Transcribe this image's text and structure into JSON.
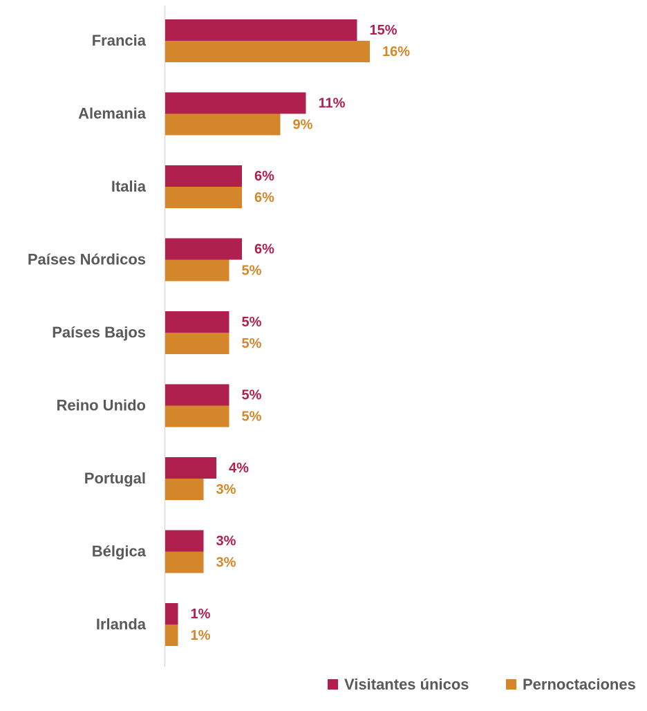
{
  "chart_data": {
    "type": "bar",
    "orientation": "horizontal",
    "categories": [
      "Francia",
      "Alemania",
      "Italia",
      "Países Nórdicos",
      "Países Bajos",
      "Reino Unido",
      "Portugal",
      "Bélgica",
      "Irlanda"
    ],
    "series": [
      {
        "name": "Visitantes únicos",
        "color": "#B0204E",
        "values": [
          15,
          11,
          6,
          6,
          5,
          5,
          4,
          3,
          1
        ],
        "labels": [
          "15%",
          "11%",
          "6%",
          "6%",
          "5%",
          "5%",
          "4%",
          "3%",
          "1%"
        ]
      },
      {
        "name": "Pernoctaciones",
        "color": "#D4872A",
        "values": [
          16,
          9,
          6,
          5,
          5,
          5,
          3,
          3,
          1
        ],
        "labels": [
          "16%",
          "9%",
          "6%",
          "5%",
          "5%",
          "5%",
          "3%",
          "3%",
          "1%"
        ]
      }
    ],
    "xlim": [
      0,
      18
    ],
    "unit": "%",
    "grid": false,
    "legend_position": "bottom-right"
  }
}
